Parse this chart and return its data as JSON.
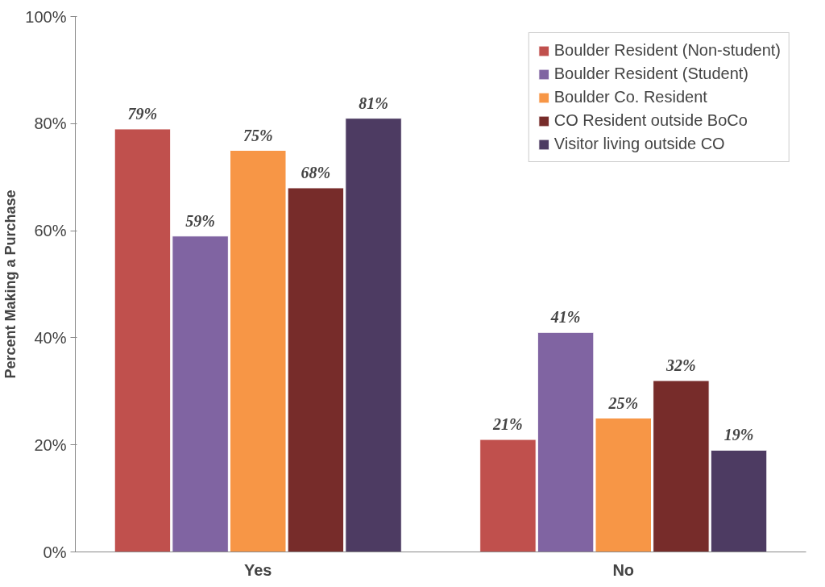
{
  "chart_data": {
    "type": "bar",
    "ylabel": "Percent Making a Purchase",
    "categories": [
      "Yes",
      "No"
    ],
    "series": [
      {
        "name": "Boulder Resident (Non-student)",
        "color": "#c0504d",
        "values": [
          79,
          21
        ],
        "value_labels": [
          "79%",
          "21%"
        ]
      },
      {
        "name": "Boulder Resident (Student)",
        "color": "#8064a2",
        "values": [
          59,
          41
        ],
        "value_labels": [
          "59%",
          "41%"
        ]
      },
      {
        "name": "Boulder Co. Resident",
        "color": "#f79646",
        "values": [
          75,
          25
        ],
        "value_labels": [
          "75%",
          "25%"
        ]
      },
      {
        "name": "CO Resident outside BoCo",
        "color": "#772c2a",
        "values": [
          68,
          32
        ],
        "value_labels": [
          "68%",
          "32%"
        ]
      },
      {
        "name": "Visitor living outside CO",
        "color": "#4d3b62",
        "values": [
          81,
          19
        ],
        "value_labels": [
          "81%",
          "19%"
        ]
      }
    ],
    "ylim": [
      0,
      100
    ],
    "yticks": [
      {
        "value": 0,
        "label": "0%"
      },
      {
        "value": 20,
        "label": "20%"
      },
      {
        "value": 40,
        "label": "40%"
      },
      {
        "value": 60,
        "label": "60%"
      },
      {
        "value": 80,
        "label": "80%"
      },
      {
        "value": 100,
        "label": "100%"
      }
    ],
    "grid": false,
    "legend": "top right"
  }
}
